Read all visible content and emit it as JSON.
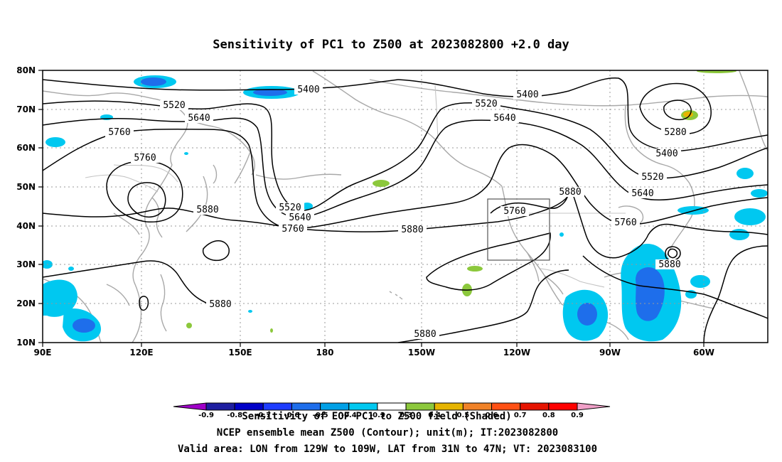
{
  "title": "Sensitivity of PC1 to Z500 at 2023082800 +2.0 day",
  "lat_labels": [
    "80N",
    "70N",
    "60N",
    "50N",
    "40N",
    "30N",
    "20N",
    "10N"
  ],
  "lon_labels": [
    "90E",
    "120E",
    "150E",
    "180",
    "150W",
    "120W",
    "90W",
    "60W"
  ],
  "contour_labels": {
    "c5400a": "5400",
    "c5400b": "5400",
    "c5400c": "5400",
    "c5520a": "5520",
    "c5520b": "5520",
    "c5520c": "5520",
    "c5520d": "5520",
    "c5640a": "5640",
    "c5640b": "5640",
    "c5640c": "5640",
    "c5640d": "5640",
    "c5760a": "5760",
    "c5760b": "5760",
    "c5760c": "5760",
    "c5760d": "5760",
    "c5760e": "5760",
    "c5880a": "5880",
    "c5880b": "5880",
    "c5880c": "5880",
    "c5880d": "5880",
    "c5880e": "5880",
    "c5880f": "5880",
    "c5280": "5280"
  },
  "colorbar": {
    "ticks": [
      "-0.9",
      "-0.8",
      "-0.7",
      "-0.6",
      "-0.5",
      "-0.4",
      "-0.3",
      "0.3",
      "0.4",
      "0.5",
      "0.6",
      "0.7",
      "0.8",
      "0.9"
    ],
    "colors": [
      "#a000c8",
      "#1e1ea0",
      "#0000c8",
      "#1e3cff",
      "#1e6eeb",
      "#00a0e6",
      "#00c8f0",
      "#ffffff",
      "#8cc83c",
      "#e6b400",
      "#f08228",
      "#ff5014",
      "#e61400",
      "#ff0000",
      "#f0a0c8"
    ],
    "label": "Sensitivity of EOF PC1 to Z500 field (Shaded)"
  },
  "captions": {
    "line1": "NCEP ensemble mean Z500 (Contour); unit(m); IT:2023082800",
    "line2": "Valid area: LON from 129W to 109W, LAT from 31N to 47N; VT: 2023083100"
  },
  "valid_area": {
    "lon_min": -129,
    "lon_max": -109,
    "lat_min": 31,
    "lat_max": 47
  },
  "map_extent": {
    "lon_min": 90,
    "lon_max": 310,
    "lat_min": 10,
    "lat_max": 80
  }
}
